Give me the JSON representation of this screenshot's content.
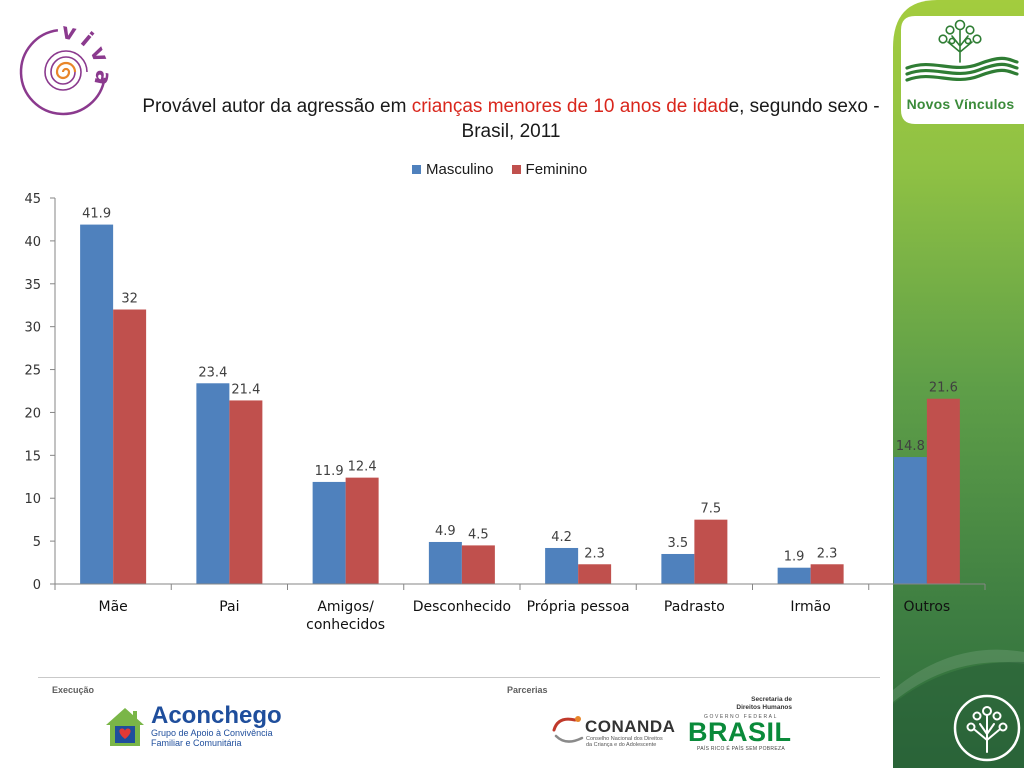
{
  "chart_data": {
    "type": "bar",
    "title": {
      "prefix": "Provável autor da agressão em ",
      "highlight": "crianças menores de 10 anos de idad",
      "suffix": "e, segundo sexo -",
      "line2": "Brasil, 2011"
    },
    "categories": [
      "Mãe",
      "Pai",
      "Amigos/ conhecidos",
      "Desconhecido",
      "Própria pessoa",
      "Padrasto",
      "Irmão",
      "Outros"
    ],
    "series": [
      {
        "name": "Masculino",
        "color": "#4f81bd",
        "values": [
          41.9,
          23.4,
          11.9,
          4.9,
          4.2,
          3.5,
          1.9,
          14.8
        ]
      },
      {
        "name": "Feminino",
        "color": "#c0504d",
        "values": [
          32,
          21.4,
          12.4,
          4.5,
          2.3,
          7.5,
          2.3,
          21.6
        ]
      }
    ],
    "xlabel": "",
    "ylabel": "",
    "ylim": [
      0,
      45
    ],
    "yticks": [
      0,
      5,
      10,
      15,
      20,
      25,
      30,
      35,
      40,
      45
    ],
    "legend": "top-center",
    "grid": false,
    "data_labels": true
  },
  "logos": {
    "viva": "viva",
    "novos_vinculos": "Novos Vínculos",
    "aconchego": {
      "name": "Aconchego",
      "tagline_line1": "Grupo de Apoio à Convivência",
      "tagline_line2": "Familiar e Comunitária"
    },
    "conanda": {
      "name": "CONANDA",
      "subtitle_line1": "Conselho Nacional dos Direitos",
      "subtitle_line2": "da Criança e do Adolescente"
    },
    "sdh": {
      "line1": "Secretaria de",
      "line2": "Direitos Humanos"
    },
    "brasil": {
      "top": "GOVERNO FEDERAL",
      "name": "BRASIL",
      "slogan": "PAÍS RICO É PAÍS SEM POBREZA"
    }
  },
  "footer": {
    "execution_label": "Execução",
    "partners_label": "Parcerias"
  },
  "icons": {
    "viva": "spiral-logo-icon",
    "novos_vinculos": "tree-hearts-icon",
    "emblem": "tree-emblem-icon",
    "aconchego": "house-heart-icon",
    "conanda": "conanda-swoosh-icon"
  },
  "colors": {
    "title_highlight": "#d9261c",
    "panel_top": "#a3cc3e",
    "panel_bottom": "#2c6a3b",
    "logo_green": "#2f7d34",
    "viva_purple": "#8b3a8e",
    "viva_orange": "#e8862a",
    "aconchego_blue": "#1f4e9c"
  }
}
